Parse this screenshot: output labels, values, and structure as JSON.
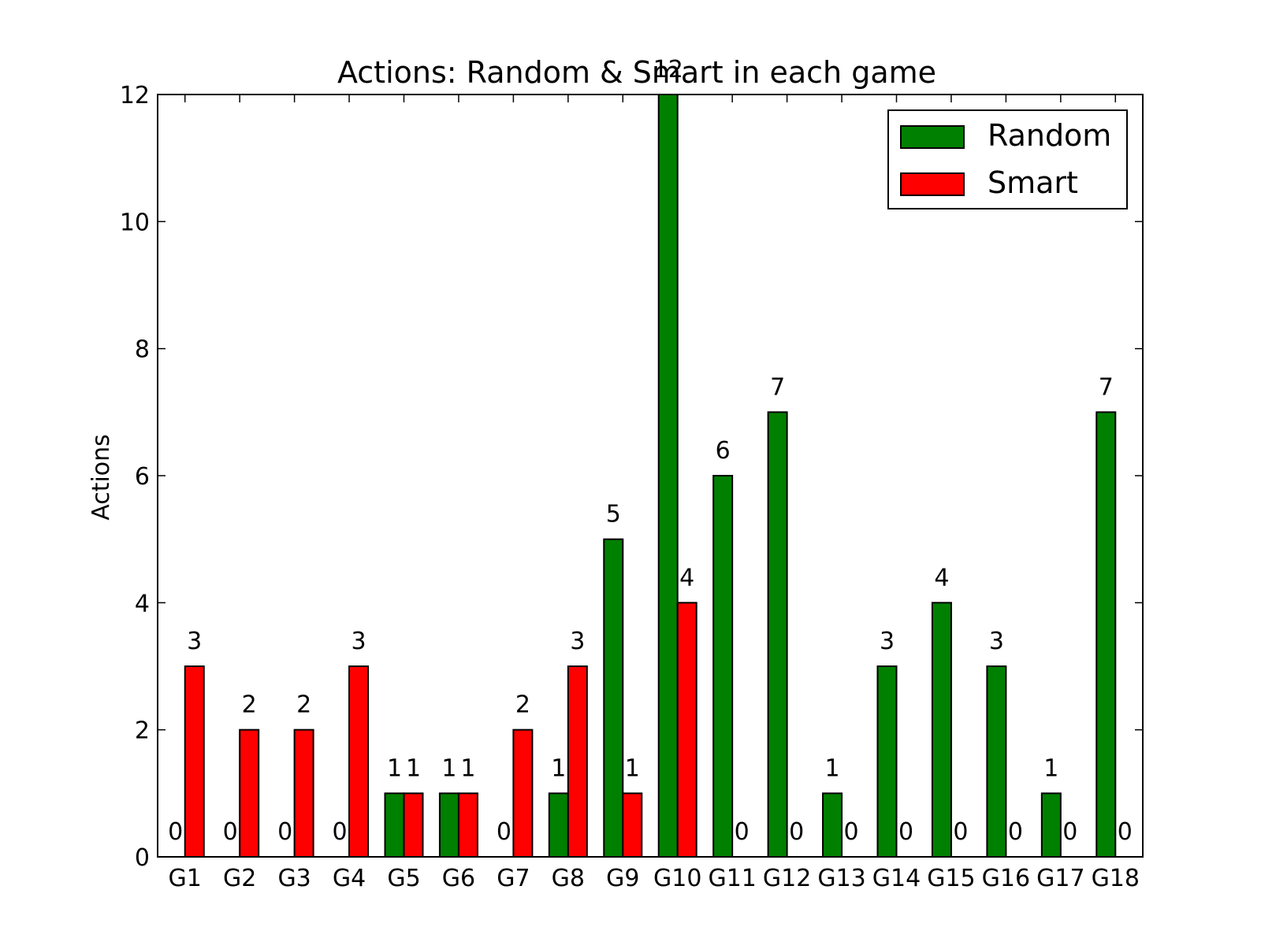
{
  "chart_data": {
    "type": "bar",
    "title": "Actions: Random & Smart in each game",
    "xlabel": "",
    "ylabel": "Actions",
    "categories": [
      "G1",
      "G2",
      "G3",
      "G4",
      "G5",
      "G6",
      "G7",
      "G8",
      "G9",
      "G10",
      "G11",
      "G12",
      "G13",
      "G14",
      "G15",
      "G16",
      "G17",
      "G18"
    ],
    "series": [
      {
        "name": "Random",
        "color": "#008000",
        "values": [
          0,
          0,
          0,
          0,
          1,
          1,
          0,
          1,
          5,
          12,
          6,
          7,
          1,
          3,
          4,
          3,
          1,
          7
        ]
      },
      {
        "name": "Smart",
        "color": "#ff0000",
        "values": [
          3,
          2,
          2,
          3,
          1,
          1,
          2,
          3,
          1,
          4,
          0,
          0,
          0,
          0,
          0,
          0,
          0,
          0
        ]
      }
    ],
    "ylim": [
      0,
      12
    ],
    "yticks": [
      0,
      2,
      4,
      6,
      8,
      10,
      12
    ],
    "ytick_labels": [
      "0",
      "2",
      "4",
      "6",
      "8",
      "10",
      "12"
    ],
    "grid": false,
    "legend": {
      "placement": "top-right"
    },
    "data_labels": true
  }
}
